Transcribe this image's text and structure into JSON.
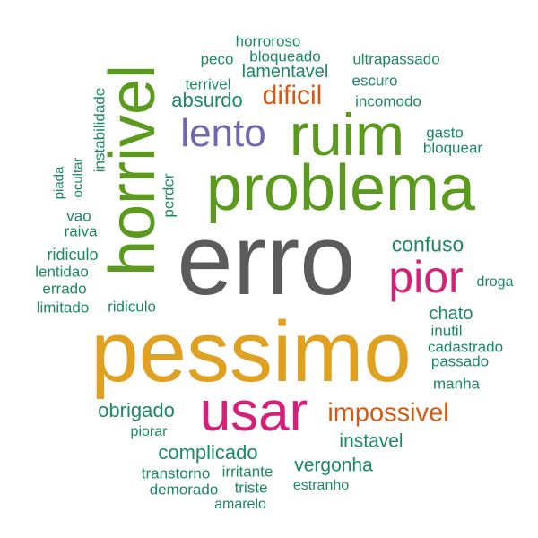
{
  "palette": {
    "teal": "#1b8a63",
    "green": "#5a9b1d",
    "gray": "#5b5b5b",
    "orange": "#e0a020",
    "pink": "#d61f78",
    "purple": "#7365b0",
    "rust": "#d45a14"
  },
  "words": {
    "erro": "erro",
    "pessimo": "pessimo",
    "problema": "problema",
    "ruim": "ruim",
    "horrivel": "horrivel",
    "usar": "usar",
    "pior": "pior",
    "lento": "lento",
    "impossivel": "impossivel",
    "dificil": "dificil",
    "confuso": "confuso",
    "complicado": "complicado",
    "obrigado": "obrigado",
    "instavel": "instavel",
    "vergonha": "vergonha",
    "absurdo": "absurdo",
    "lamentavel": "lamentavel",
    "chato": "chato",
    "horroroso": "horroroso",
    "bloqueado": "bloqueado",
    "peco": "peco",
    "ultrapassado": "ultrapassado",
    "terrivel": "terrivel",
    "escuro": "escuro",
    "incomodo": "incomodo",
    "instabilidade": "instabilidade",
    "gasto": "gasto",
    "bloquear": "bloquear",
    "ocultar": "ocultar",
    "piada": "piada",
    "perder": "perder",
    "vao": "vao",
    "raiva": "raiva",
    "ridiculo_1": "ridiculo",
    "lentidao": "lentidao",
    "errado": "errado",
    "limitado": "limitado",
    "ridiculo_2": "ridiculo",
    "droga": "droga",
    "inutil": "inutil",
    "cadastrado": "cadastrado",
    "passado": "passado",
    "manha": "manha",
    "piorar": "piorar",
    "transtorno": "transtorno",
    "irritante": "irritante",
    "demorado": "demorado",
    "triste": "triste",
    "estranho": "estranho",
    "amarelo": "amarelo"
  }
}
